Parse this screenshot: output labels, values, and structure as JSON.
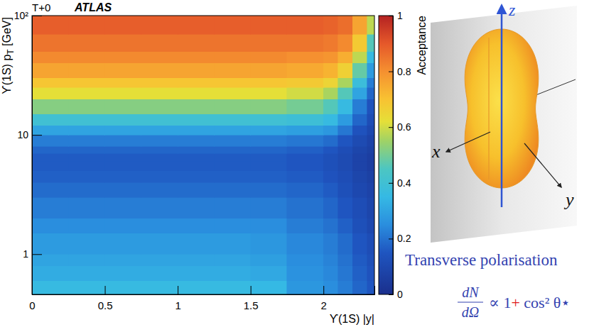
{
  "chart_data": {
    "type": "heatmap",
    "title": "T+0",
    "subtitle": "ATLAS",
    "xlabel": "ϒ(1S) |y|",
    "ylabel": {
      "text": "ϒ(1S) p",
      "subscript": "T",
      "suffix": " [GeV]"
    },
    "log": "y",
    "xlim": [
      0,
      2.35
    ],
    "ylim": [
      0.46,
      100
    ],
    "xticks": [
      0,
      0.5,
      1,
      1.5,
      2
    ],
    "yticks": [
      1,
      10,
      {
        "value": 100,
        "label": "10²"
      }
    ],
    "x_edges": [
      0,
      0.25,
      0.5,
      0.75,
      1,
      1.25,
      1.5,
      1.75,
      2,
      2.1,
      2.2,
      2.3,
      2.35
    ],
    "y_edges": [
      0.46,
      0.6,
      0.8,
      1,
      1.5,
      2,
      3,
      4,
      5,
      6,
      7,
      8,
      10,
      12,
      15,
      20,
      25,
      30,
      40,
      50,
      70,
      100
    ],
    "z": [
      [
        0.36,
        0.36,
        0.36,
        0.36,
        0.36,
        0.36,
        0.35,
        0.27,
        0.25,
        0.22,
        0.18,
        0.15
      ],
      [
        0.32,
        0.32,
        0.32,
        0.32,
        0.32,
        0.32,
        0.31,
        0.26,
        0.24,
        0.21,
        0.17,
        0.14
      ],
      [
        0.3,
        0.3,
        0.3,
        0.3,
        0.3,
        0.3,
        0.29,
        0.25,
        0.23,
        0.2,
        0.16,
        0.13
      ],
      [
        0.28,
        0.28,
        0.28,
        0.28,
        0.28,
        0.28,
        0.27,
        0.24,
        0.22,
        0.19,
        0.15,
        0.12
      ],
      [
        0.25,
        0.25,
        0.25,
        0.25,
        0.25,
        0.25,
        0.25,
        0.22,
        0.2,
        0.17,
        0.13,
        0.1
      ],
      [
        0.22,
        0.22,
        0.22,
        0.22,
        0.22,
        0.22,
        0.22,
        0.2,
        0.18,
        0.15,
        0.12,
        0.09
      ],
      [
        0.19,
        0.19,
        0.19,
        0.19,
        0.19,
        0.19,
        0.19,
        0.18,
        0.16,
        0.13,
        0.1,
        0.08
      ],
      [
        0.17,
        0.17,
        0.17,
        0.17,
        0.17,
        0.17,
        0.17,
        0.16,
        0.14,
        0.12,
        0.09,
        0.07
      ],
      [
        0.16,
        0.16,
        0.16,
        0.16,
        0.16,
        0.16,
        0.16,
        0.15,
        0.13,
        0.11,
        0.08,
        0.06
      ],
      [
        0.16,
        0.16,
        0.16,
        0.16,
        0.16,
        0.16,
        0.16,
        0.15,
        0.13,
        0.11,
        0.08,
        0.06
      ],
      [
        0.18,
        0.18,
        0.18,
        0.18,
        0.18,
        0.18,
        0.18,
        0.17,
        0.15,
        0.12,
        0.09,
        0.07
      ],
      [
        0.22,
        0.22,
        0.22,
        0.22,
        0.22,
        0.22,
        0.22,
        0.21,
        0.19,
        0.15,
        0.11,
        0.08
      ],
      [
        0.3,
        0.3,
        0.3,
        0.3,
        0.3,
        0.3,
        0.3,
        0.29,
        0.27,
        0.21,
        0.14,
        0.1
      ],
      [
        0.4,
        0.4,
        0.4,
        0.4,
        0.4,
        0.4,
        0.4,
        0.39,
        0.36,
        0.28,
        0.18,
        0.12
      ],
      [
        0.52,
        0.52,
        0.52,
        0.52,
        0.52,
        0.52,
        0.52,
        0.5,
        0.46,
        0.36,
        0.22,
        0.14
      ],
      [
        0.62,
        0.62,
        0.62,
        0.62,
        0.62,
        0.62,
        0.62,
        0.6,
        0.56,
        0.46,
        0.3,
        0.18
      ],
      [
        0.69,
        0.69,
        0.69,
        0.69,
        0.69,
        0.69,
        0.69,
        0.68,
        0.65,
        0.56,
        0.38,
        0.22
      ],
      [
        0.76,
        0.76,
        0.76,
        0.76,
        0.76,
        0.76,
        0.76,
        0.75,
        0.73,
        0.66,
        0.48,
        0.28
      ],
      [
        0.81,
        0.81,
        0.81,
        0.81,
        0.81,
        0.81,
        0.81,
        0.8,
        0.79,
        0.74,
        0.58,
        0.36
      ],
      [
        0.85,
        0.85,
        0.85,
        0.85,
        0.85,
        0.85,
        0.85,
        0.85,
        0.84,
        0.81,
        0.68,
        0.46
      ],
      [
        0.89,
        0.89,
        0.89,
        0.89,
        0.89,
        0.89,
        0.89,
        0.89,
        0.88,
        0.86,
        0.76,
        0.58
      ]
    ],
    "colorbar": {
      "label": "Acceptance",
      "range": [
        0,
        1
      ],
      "ticks": [
        0,
        0.2,
        0.4,
        0.6,
        0.8,
        1
      ]
    }
  },
  "illustration": {
    "axes": {
      "x": "x",
      "y": "y",
      "z": "z"
    },
    "caption": "Transverse polarisation",
    "formula": {
      "numerator": "dN",
      "denominator": "dΩ",
      "rhs_parts": [
        "∝ 1",
        "+",
        " cos² θ⋆"
      ]
    }
  }
}
